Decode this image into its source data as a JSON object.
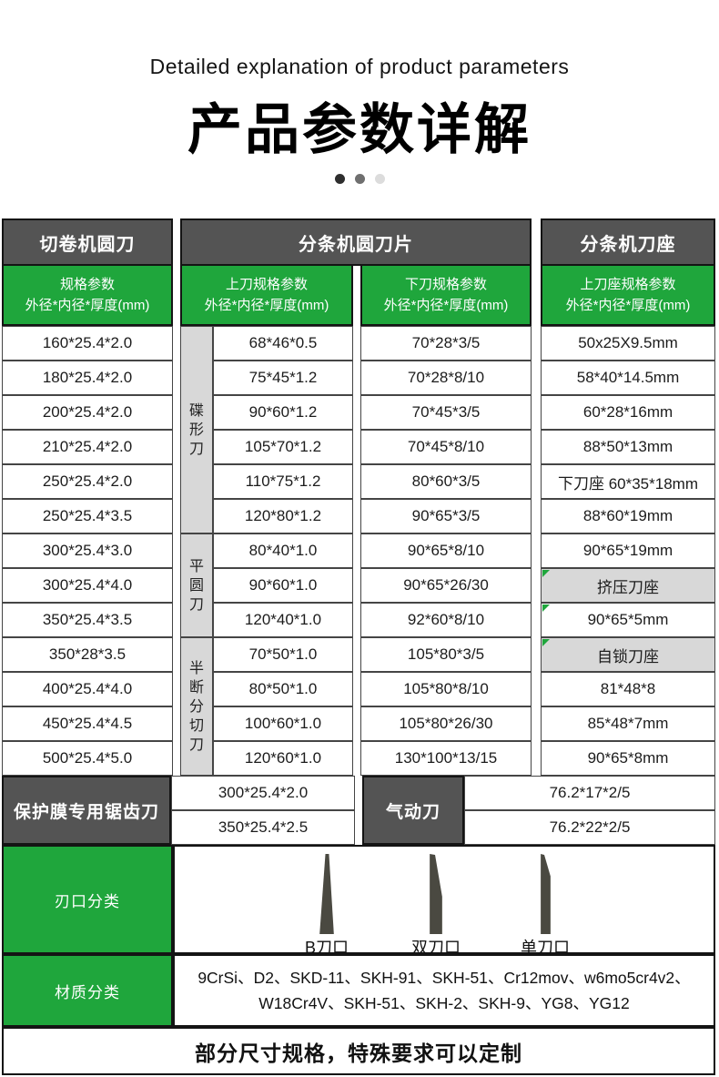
{
  "header": {
    "subtitle_en": "Detailed explanation of product parameters",
    "title_zh": "产品参数详解"
  },
  "carousel": {
    "dot_colors": [
      "#2e2e2e",
      "#6f6f6f",
      "#dcdcdc"
    ]
  },
  "colors": {
    "green": "#1fa63c",
    "dark_header": "#545454",
    "grey_cell": "#d8d8d8"
  },
  "roll_cutter": {
    "header": "切卷机圆刀",
    "subheader_line1": "规格参数",
    "subheader_line2": "外径*内径*厚度(mm)",
    "rows": [
      "160*25.4*2.0",
      "180*25.4*2.0",
      "200*25.4*2.0",
      "210*25.4*2.0",
      "250*25.4*2.0",
      "250*25.4*3.5",
      "300*25.4*3.0",
      "300*25.4*4.0",
      "350*25.4*3.5",
      "350*28*3.5",
      "400*25.4*4.0",
      "450*25.4*4.5",
      "500*25.4*5.0"
    ]
  },
  "slitter": {
    "header": "分条机圆刀片",
    "upper": {
      "subheader_line1": "上刀规格参数",
      "subheader_line2": "外径*内径*厚度(mm)",
      "groups": [
        {
          "label": "碟形刀",
          "values": [
            "68*46*0.5",
            "75*45*1.2",
            "90*60*1.2",
            "105*70*1.2",
            "110*75*1.2",
            "120*80*1.2"
          ]
        },
        {
          "label": "平圆刀",
          "values": [
            "80*40*1.0",
            "90*60*1.0",
            "120*40*1.0"
          ]
        },
        {
          "label": "半断分切刀",
          "values": [
            "70*50*1.0",
            "80*50*1.0",
            "100*60*1.0",
            "120*60*1.0"
          ]
        }
      ]
    },
    "lower": {
      "subheader_line1": "下刀规格参数",
      "subheader_line2": "外径*内径*厚度(mm)",
      "rows": [
        "70*28*3/5",
        "70*28*8/10",
        "70*45*3/5",
        "70*45*8/10",
        "80*60*3/5",
        "90*65*3/5",
        "90*65*8/10",
        "90*65*26/30",
        "92*60*8/10",
        "105*80*3/5",
        "105*80*8/10",
        "105*80*26/30",
        "130*100*13/15"
      ]
    }
  },
  "holder": {
    "header": "分条机刀座",
    "subheader_line1": "上刀座规格参数",
    "subheader_line2": "外径*内径*厚度(mm)",
    "rows": [
      {
        "text": "50x25X9.5mm",
        "style": "value",
        "marker": false
      },
      {
        "text": "58*40*14.5mm",
        "style": "value",
        "marker": false
      },
      {
        "text": "60*28*16mm",
        "style": "value",
        "marker": false
      },
      {
        "text": "88*50*13mm",
        "style": "value",
        "marker": false
      },
      {
        "text": "下刀座 60*35*18mm",
        "style": "value",
        "marker": false
      },
      {
        "text": "88*60*19mm",
        "style": "value",
        "marker": false
      },
      {
        "text": "90*65*19mm",
        "style": "value",
        "marker": false
      },
      {
        "text": "挤压刀座",
        "style": "label",
        "marker": true
      },
      {
        "text": "90*65*5mm",
        "style": "value",
        "marker": true
      },
      {
        "text": "自锁刀座",
        "style": "label",
        "marker": true
      },
      {
        "text": "81*48*8",
        "style": "value",
        "marker": false
      },
      {
        "text": "85*48*7mm",
        "style": "value",
        "marker": false
      },
      {
        "text": "90*65*8mm",
        "style": "value",
        "marker": false
      }
    ]
  },
  "saw": {
    "label": "保护膜专用锯齿刀",
    "rows": [
      "300*25.4*2.0",
      "350*25.4*2.5"
    ]
  },
  "pneumatic": {
    "label": "气动刀",
    "rows": [
      "76.2*17*2/5",
      "76.2*22*2/5"
    ]
  },
  "edge_class": {
    "label": "刃口分类",
    "items": [
      {
        "name": "b-edge",
        "label": "B刀口"
      },
      {
        "name": "double-edge",
        "label": "双刀口"
      },
      {
        "name": "single-edge",
        "label": "单刀口"
      }
    ]
  },
  "material_class": {
    "label": "材质分类",
    "line1": "9CrSi、D2、SKD-11、SKH-91、SKH-51、Cr12mov、w6mo5cr4v2、",
    "line2": "W18Cr4V、SKH-51、SKH-2、SKH-9、YG8、YG12"
  },
  "footer": {
    "note": "部分尺寸规格，特殊要求可以定制"
  }
}
